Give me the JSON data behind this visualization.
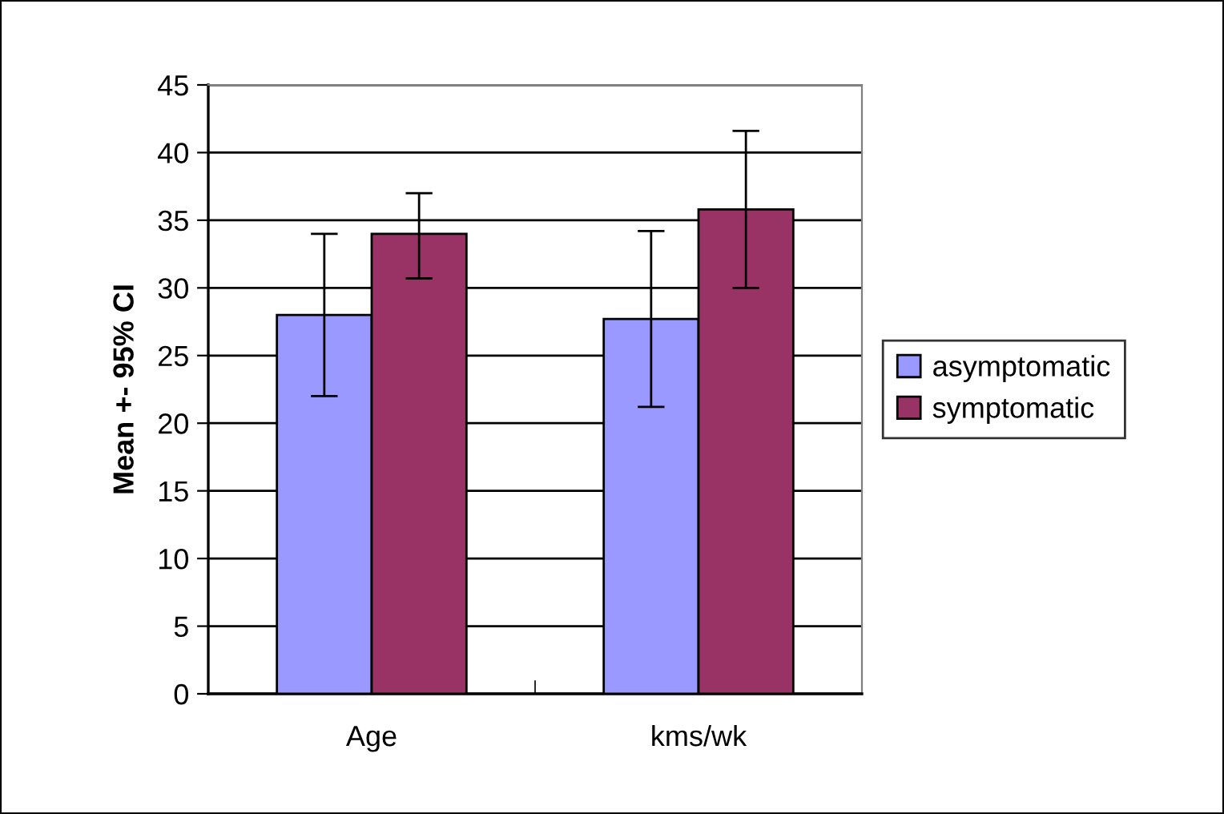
{
  "chart_data": {
    "type": "bar",
    "ylabel": "Mean +- 95% CI",
    "categories": [
      "Age",
      "kms/wk"
    ],
    "series": [
      {
        "name": "asymptomatic",
        "color": "#9999ff",
        "values": [
          28,
          27.7
        ],
        "errors": [
          [
            22,
            34
          ],
          [
            21.2,
            34.2
          ]
        ]
      },
      {
        "name": "symptomatic",
        "color": "#993366",
        "values": [
          34,
          35.8
        ],
        "errors": [
          [
            30.7,
            37
          ],
          [
            30,
            41.6
          ]
        ]
      }
    ],
    "ylim": [
      0,
      45
    ],
    "yticks": [
      0,
      5,
      10,
      15,
      20,
      25,
      30,
      35,
      40,
      45
    ],
    "grid": "y",
    "legend": "right"
  }
}
